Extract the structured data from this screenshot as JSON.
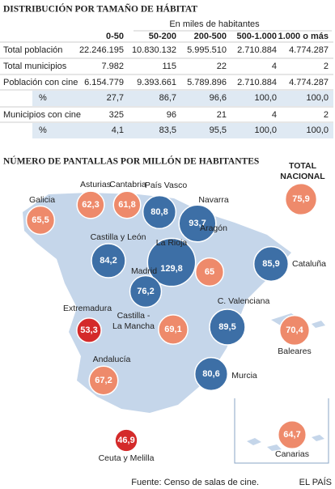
{
  "table": {
    "title": "DISTRIBUCIÓN POR TAMAÑO DE HÁBITAT",
    "unit_note": "En miles de habitantes",
    "columns": [
      "0-50",
      "50-200",
      "200-500",
      "500-1.000",
      "1.000 o más"
    ],
    "rows": [
      [
        "Total población",
        "22.246.195",
        "10.830.132",
        "5.995.510",
        "2.710.884",
        "4.774.287"
      ],
      [
        "Total municipios",
        "7.982",
        "115",
        "22",
        "4",
        "2"
      ],
      [
        "Población con cine",
        "6.154.779",
        "9.393.661",
        "5.789.896",
        "2.710.884",
        "4.774.287"
      ],
      [
        "%",
        "27,7",
        "86,7",
        "96,6",
        "100,0",
        "100,0"
      ],
      [
        "Municipios con cine",
        "325",
        "96",
        "21",
        "4",
        "2"
      ],
      [
        "%",
        "4,1",
        "83,5",
        "95,5",
        "100,0",
        "100,0"
      ]
    ]
  },
  "map": {
    "title": "NÚMERO DE PANTALLAS POR MILLÓN DE HABITANTES",
    "national": {
      "label": "TOTAL NACIONAL",
      "value": 75.9,
      "value_label": "75,9",
      "color": "#ee8a6b"
    },
    "regions": [
      {
        "label": "Galicia",
        "value": 65.5,
        "value_label": "65,5",
        "color": "#ee8a6b"
      },
      {
        "label": "Asturias",
        "value": 62.3,
        "value_label": "62,3",
        "color": "#ee8a6b"
      },
      {
        "label": "Cantabria",
        "value": 61.8,
        "value_label": "61,8",
        "color": "#ee8a6b"
      },
      {
        "label": "País Vasco",
        "value": 80.8,
        "value_label": "80,8",
        "color": "#3d6fa6"
      },
      {
        "label": "Navarra",
        "value": 93.7,
        "value_label": "93,7",
        "color": "#3d6fa6"
      },
      {
        "label": "Castilla y León",
        "value": 84.2,
        "value_label": "84,2",
        "color": "#3d6fa6"
      },
      {
        "label": "La Rioja",
        "value": 129.8,
        "value_label": "129,8",
        "color": "#3d6fa6"
      },
      {
        "label": "Aragón",
        "value": 65,
        "value_label": "65",
        "color": "#ee8a6b"
      },
      {
        "label": "Cataluña",
        "value": 85.9,
        "value_label": "85,9",
        "color": "#3d6fa6"
      },
      {
        "label": "Madrid",
        "value": 76.2,
        "value_label": "76,2",
        "color": "#3d6fa6"
      },
      {
        "label": "C. Valenciana",
        "value": 89.5,
        "value_label": "89,5",
        "color": "#3d6fa6"
      },
      {
        "label": "Extremadura",
        "value": 53.3,
        "value_label": "53,3",
        "color": "#d42a2a"
      },
      {
        "label": "Castilla -\nLa Mancha",
        "value": 69.1,
        "value_label": "69,1",
        "color": "#ee8a6b"
      },
      {
        "label": "Baleares",
        "value": 70.4,
        "value_label": "70,4",
        "color": "#ee8a6b"
      },
      {
        "label": "Andalucía",
        "value": 67.2,
        "value_label": "67,2",
        "color": "#ee8a6b"
      },
      {
        "label": "Murcia",
        "value": 80.6,
        "value_label": "80,6",
        "color": "#3d6fa6"
      },
      {
        "label": "Ceuta y Melilla",
        "value": 46.9,
        "value_label": "46,9",
        "color": "#d42a2a"
      },
      {
        "label": "Canarias",
        "value": 64.7,
        "value_label": "64,7",
        "color": "#ee8a6b"
      }
    ]
  },
  "footer": {
    "source": "Fuente: Censo de salas de cine.",
    "credit": "EL PAÍS"
  }
}
